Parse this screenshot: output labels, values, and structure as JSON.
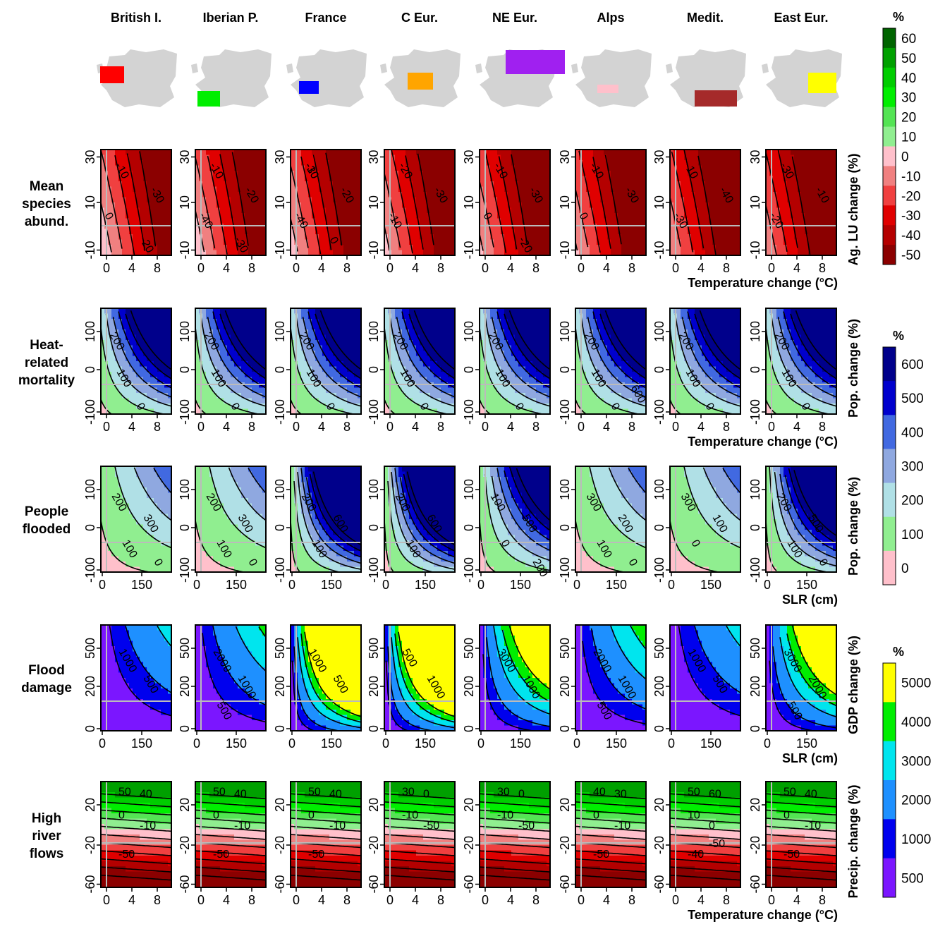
{
  "regions": [
    "British I.",
    "Iberian P.",
    "France",
    "C Eur.",
    "NE Eur.",
    "Alps",
    "Medit.",
    "East Eur."
  ],
  "region_colors": [
    "#ff0000",
    "#00ee00",
    "#0000ff",
    "#ffa500",
    "#a020f0",
    "#ffc0cb",
    "#a52a2a",
    "#ffff00"
  ],
  "colorbars": [
    {
      "title": "%",
      "labels": [
        "60",
        "50",
        "40",
        "30",
        "20",
        "10",
        "0",
        "-10",
        "-20",
        "-30",
        "-40",
        "-50"
      ],
      "colors": [
        "#006400",
        "#00a000",
        "#00cd00",
        "#00ee00",
        "#54e454",
        "#90ee90",
        "#ffc0cb",
        "#f08080",
        "#f04040",
        "#e00000",
        "#b40000",
        "#8b0000"
      ]
    },
    {
      "title": "%",
      "labels": [
        "600",
        "500",
        "400",
        "300",
        "200",
        "100",
        "0"
      ],
      "colors": [
        "#00008b",
        "#0000cd",
        "#4169e1",
        "#8fa8e0",
        "#b0e0e6",
        "#90ee90",
        "#ffc0cb"
      ]
    },
    {
      "title": "%",
      "labels": [
        "5000",
        "4000",
        "3000",
        "2000",
        "1000",
        "500"
      ],
      "colors": [
        "#ffff00",
        "#00ee00",
        "#00e5ee",
        "#1e90ff",
        "#0000ee",
        "#7b16ff"
      ]
    }
  ],
  "chart_data": [
    {
      "type": "heatmap",
      "row_label": [
        "Mean",
        "species",
        "abund."
      ],
      "ylabel": "Ag. LU change (%)",
      "xlabel": "Temperature change (°C)",
      "xticks": [
        "0",
        "4",
        "8"
      ],
      "yticks": [
        "30",
        "10",
        "-10"
      ],
      "contour_labels": [
        [
          "-10",
          "-30",
          "0",
          "-20"
        ],
        [
          "-10",
          "-20",
          "-40",
          "-30"
        ],
        [
          "-10",
          "-20",
          "-40",
          "0",
          "-30"
        ],
        [
          "-20",
          "-30",
          "-10"
        ],
        [
          "-10",
          "-30",
          "0",
          "-20"
        ],
        [
          "-10",
          "-30",
          "0"
        ],
        [
          "-10",
          "-40",
          "-30"
        ],
        [
          "-30",
          "-10",
          "-20"
        ]
      ]
    },
    {
      "type": "heatmap",
      "row_label": [
        "Heat-",
        "related",
        "mortality"
      ],
      "ylabel": "Pop. change (%)",
      "xlabel": "Temperature change (°C)",
      "xticks": [
        "0",
        "4",
        "8"
      ],
      "yticks": [
        "100",
        "0",
        "-100"
      ],
      "contour_labels": [
        [
          "200",
          "100",
          "0"
        ],
        [
          "200",
          "100",
          "0"
        ],
        [
          "200",
          "100",
          "0"
        ],
        [
          "200",
          "100",
          "0"
        ],
        [
          "200",
          "100",
          "0"
        ],
        [
          "200",
          "100",
          "0",
          "600"
        ],
        [
          "200",
          "100",
          "0"
        ],
        [
          "200",
          "100",
          "0"
        ]
      ]
    },
    {
      "type": "heatmap",
      "row_label": [
        "People",
        "flooded"
      ],
      "ylabel": "Pop. change (%)",
      "xlabel": "SLR (cm)",
      "xticks": [
        "0",
        "150"
      ],
      "yticks": [
        "100",
        "0",
        "-100"
      ],
      "contour_labels": [
        [
          "200",
          "300",
          "100",
          "0"
        ],
        [
          "200",
          "300",
          "100",
          "0"
        ],
        [
          "200",
          "600",
          "100"
        ],
        [
          "200",
          "600",
          "100"
        ],
        [
          "100",
          "500",
          "0",
          "200"
        ],
        [
          "300",
          "200",
          "100",
          "0"
        ],
        [
          "300",
          "100",
          "0"
        ],
        [
          "200",
          "500",
          "100",
          "0"
        ]
      ]
    },
    {
      "type": "heatmap",
      "row_label": [
        "Flood",
        "damage"
      ],
      "ylabel": "GDP change (%)",
      "xlabel": "SLR (cm)",
      "xticks": [
        "0",
        "150"
      ],
      "yticks": [
        "500",
        "200",
        "0"
      ],
      "contour_labels": [
        [
          "1000",
          "500"
        ],
        [
          "2000",
          "1000",
          "500"
        ],
        [
          "1000",
          "500"
        ],
        [
          "500",
          "1000"
        ],
        [
          "3000",
          "1000"
        ],
        [
          "2000",
          "1000",
          "500"
        ],
        [
          "1000",
          "500"
        ],
        [
          "3000",
          "2000",
          "500"
        ]
      ]
    },
    {
      "type": "heatmap",
      "row_label": [
        "High",
        "river",
        "flows"
      ],
      "ylabel": "Precip. change (%)",
      "xlabel": "Temperature change (°C)",
      "xticks": [
        "0",
        "4",
        "8"
      ],
      "yticks": [
        "20",
        "-20",
        "-60"
      ],
      "contour_labels": [
        [
          "50",
          "40",
          "0",
          "-10",
          "-50"
        ],
        [
          "50",
          "40",
          "0",
          "-10",
          "-50"
        ],
        [
          "50",
          "40",
          "0",
          "-10",
          "-50"
        ],
        [
          "30",
          "0",
          "-10",
          "-50"
        ],
        [
          "30",
          "0",
          "-10",
          "-50"
        ],
        [
          "40",
          "30",
          "0",
          "-10",
          "-50"
        ],
        [
          "50",
          "60",
          "10",
          "0",
          "-40",
          "-50"
        ],
        [
          "50",
          "40",
          "0",
          "-10",
          "-50"
        ]
      ]
    }
  ]
}
